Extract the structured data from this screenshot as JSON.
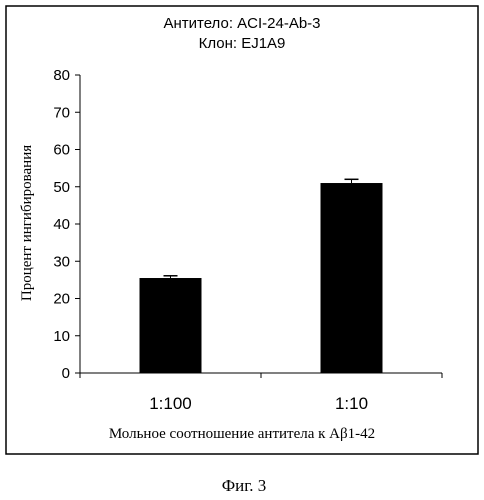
{
  "chart_data": {
    "type": "bar",
    "title": "Антитело: ACI-24-Ab-3",
    "subtitle": "Клон: EJ1A9",
    "categories": [
      "1:100",
      "1:10"
    ],
    "values": [
      25.5,
      51
    ],
    "errors": [
      0.6,
      1.0
    ],
    "xlabel": "Мольное соотношение антитела к Aβ1-42",
    "ylabel": "Процент ингибирования",
    "ylim": [
      0,
      80
    ],
    "yticks": [
      0,
      10,
      20,
      30,
      40,
      50,
      60,
      70,
      80
    ],
    "grid": false,
    "bar_color": "#000000"
  },
  "caption": "Фиг. 3"
}
